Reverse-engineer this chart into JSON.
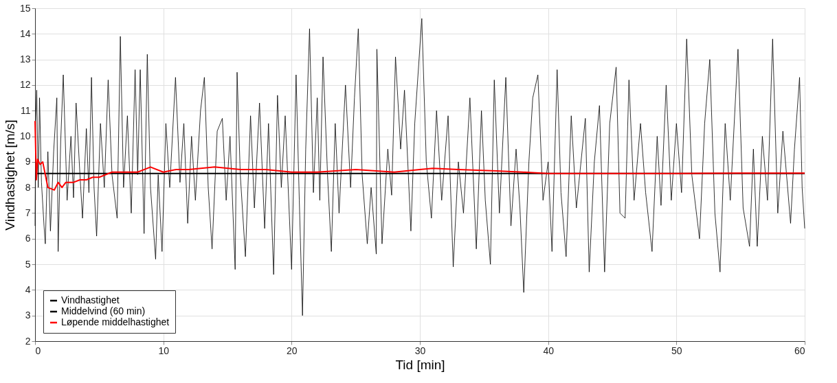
{
  "chart_data": {
    "type": "line",
    "xlabel": "Tid [min]",
    "ylabel": "Vindhastighet [m/s]",
    "xlim": [
      0,
      60
    ],
    "ylim": [
      2,
      15
    ],
    "xticks": [
      0,
      10,
      20,
      30,
      40,
      50,
      60
    ],
    "yticks": [
      2,
      3,
      4,
      5,
      6,
      7,
      8,
      9,
      10,
      11,
      12,
      13,
      14,
      15
    ],
    "grid": true,
    "legend": "bottom left",
    "series": [
      {
        "name": "Vindhastighet",
        "color": "#000000",
        "x": [
          0,
          0.05,
          0.13,
          0.25,
          0.35,
          0.5,
          0.7,
          0.8,
          1.0,
          1.2,
          1.45,
          1.7,
          1.8,
          2.0,
          2.2,
          2.5,
          2.8,
          3.0,
          3.2,
          3.5,
          3.7,
          4.0,
          4.2,
          4.4,
          4.6,
          4.8,
          5.1,
          5.4,
          5.7,
          6.0,
          6.4,
          6.65,
          6.9,
          7.2,
          7.5,
          7.8,
          8.0,
          8.2,
          8.5,
          8.75,
          9.0,
          9.4,
          9.6,
          9.9,
          10.2,
          10.5,
          10.95,
          11.3,
          11.6,
          11.9,
          12.2,
          12.5,
          12.9,
          13.2,
          13.5,
          13.8,
          14.2,
          14.6,
          14.9,
          15.2,
          15.6,
          15.75,
          16.0,
          16.4,
          16.8,
          17.1,
          17.5,
          17.9,
          18.2,
          18.6,
          18.9,
          19.2,
          19.5,
          20.0,
          20.35,
          20.6,
          20.85,
          21.1,
          21.4,
          21.7,
          22.0,
          22.2,
          22.45,
          22.8,
          23.1,
          23.4,
          23.7,
          24.2,
          24.6,
          24.9,
          25.2,
          25.5,
          25.9,
          26.2,
          26.6,
          26.65,
          27.05,
          27.5,
          27.8,
          28.1,
          28.5,
          28.8,
          29.3,
          29.6,
          30.15,
          30.5,
          30.9,
          31.3,
          31.7,
          32.2,
          32.6,
          33.0,
          33.4,
          33.9,
          34.4,
          34.8,
          35.1,
          35.5,
          35.8,
          36.2,
          36.7,
          37.1,
          37.5,
          37.8,
          38.1,
          38.5,
          38.8,
          39.2,
          39.6,
          40.0,
          40.3,
          40.7,
          41.0,
          41.4,
          41.8,
          42.2,
          42.9,
          43.2,
          43.6,
          44.0,
          44.4,
          44.8,
          45.3,
          45.6,
          46.0,
          46.3,
          46.7,
          47.2,
          47.6,
          48.1,
          48.5,
          48.8,
          49.2,
          49.6,
          50.0,
          50.4,
          50.8,
          51.2,
          51.8,
          52.2,
          52.6,
          53.0,
          53.4,
          53.8,
          54.2,
          54.8,
          55.2,
          55.7,
          56.0,
          56.3,
          56.7,
          57.1,
          57.5,
          57.9,
          58.3,
          58.9,
          59.2,
          59.6,
          59.8,
          60.0
        ],
        "values": [
          6.5,
          10.6,
          11.8,
          8.0,
          11.5,
          8.2,
          6.5,
          5.8,
          9.4,
          6.3,
          9.4,
          11.5,
          5.5,
          9.8,
          12.4,
          7.5,
          10.0,
          7.6,
          11.3,
          8.5,
          6.8,
          10.3,
          7.8,
          12.3,
          8.0,
          6.1,
          10.5,
          8.0,
          12.2,
          8.5,
          6.8,
          13.9,
          8.0,
          10.8,
          7.0,
          12.6,
          8.5,
          12.6,
          6.2,
          13.2,
          8.0,
          5.2,
          8.5,
          5.5,
          10.5,
          8.0,
          12.3,
          8.2,
          10.5,
          6.6,
          10.0,
          7.5,
          11.0,
          12.3,
          8.0,
          5.6,
          10.2,
          10.7,
          7.5,
          10.0,
          4.8,
          12.5,
          8.5,
          5.3,
          10.8,
          7.2,
          11.3,
          6.4,
          10.5,
          4.6,
          11.6,
          8.0,
          10.8,
          4.8,
          12.4,
          7.5,
          3.0,
          9.5,
          14.2,
          7.8,
          11.5,
          7.5,
          13.1,
          8.5,
          5.5,
          10.5,
          7.0,
          12.0,
          8.0,
          11.5,
          14.2,
          8.5,
          5.8,
          8.0,
          5.4,
          13.4,
          5.8,
          9.5,
          7.7,
          13.1,
          9.5,
          11.8,
          6.3,
          10.5,
          14.6,
          9.0,
          6.8,
          11.0,
          7.5,
          10.8,
          4.9,
          9.0,
          7.0,
          11.5,
          5.6,
          11.0,
          7.5,
          5.0,
          12.2,
          7.0,
          12.3,
          6.5,
          9.5,
          7.2,
          3.9,
          9.0,
          11.5,
          12.4,
          7.5,
          9.0,
          5.5,
          12.6,
          7.8,
          5.3,
          10.8,
          7.2,
          10.7,
          4.7,
          9.0,
          11.2,
          4.7,
          10.5,
          12.7,
          7.0,
          6.8,
          12.2,
          7.5,
          10.5,
          7.8,
          5.5,
          10.0,
          7.3,
          12.0,
          7.5,
          10.5,
          7.8,
          13.8,
          8.5,
          6.0,
          10.5,
          13.0,
          7.0,
          4.7,
          10.5,
          7.5,
          13.4,
          7.2,
          5.7,
          9.5,
          5.7,
          10.0,
          7.5,
          13.8,
          7.0,
          10.2,
          6.6,
          9.5,
          12.3,
          8.0,
          6.4
        ]
      },
      {
        "name": "Middelvind (60 min)",
        "color": "#000000",
        "x": [
          0,
          60
        ],
        "values": [
          8.55,
          8.55
        ]
      },
      {
        "name": "Løpende middelhastighet",
        "color": "#ff0000",
        "x": [
          0,
          0.1,
          0.2,
          0.4,
          0.6,
          0.8,
          1.0,
          1.5,
          1.8,
          2.1,
          2.4,
          3.0,
          3.5,
          4.0,
          4.5,
          5.0,
          6.0,
          7.0,
          8.0,
          9.0,
          10.0,
          11.0,
          12.0,
          14.0,
          16.0,
          18.0,
          20.0,
          22.0,
          25.0,
          28.0,
          30.0,
          31.0,
          33.0,
          36.0,
          38.0,
          40.0,
          45.0,
          50.0,
          55.0,
          60.0
        ],
        "values": [
          10.6,
          8.3,
          9.1,
          8.9,
          9.0,
          8.5,
          8.0,
          7.9,
          8.2,
          8.0,
          8.2,
          8.2,
          8.3,
          8.3,
          8.4,
          8.4,
          8.6,
          8.6,
          8.6,
          8.8,
          8.6,
          8.7,
          8.7,
          8.8,
          8.7,
          8.7,
          8.6,
          8.6,
          8.7,
          8.6,
          8.7,
          8.75,
          8.7,
          8.65,
          8.6,
          8.55,
          8.55,
          8.55,
          8.56,
          8.56
        ]
      }
    ]
  }
}
